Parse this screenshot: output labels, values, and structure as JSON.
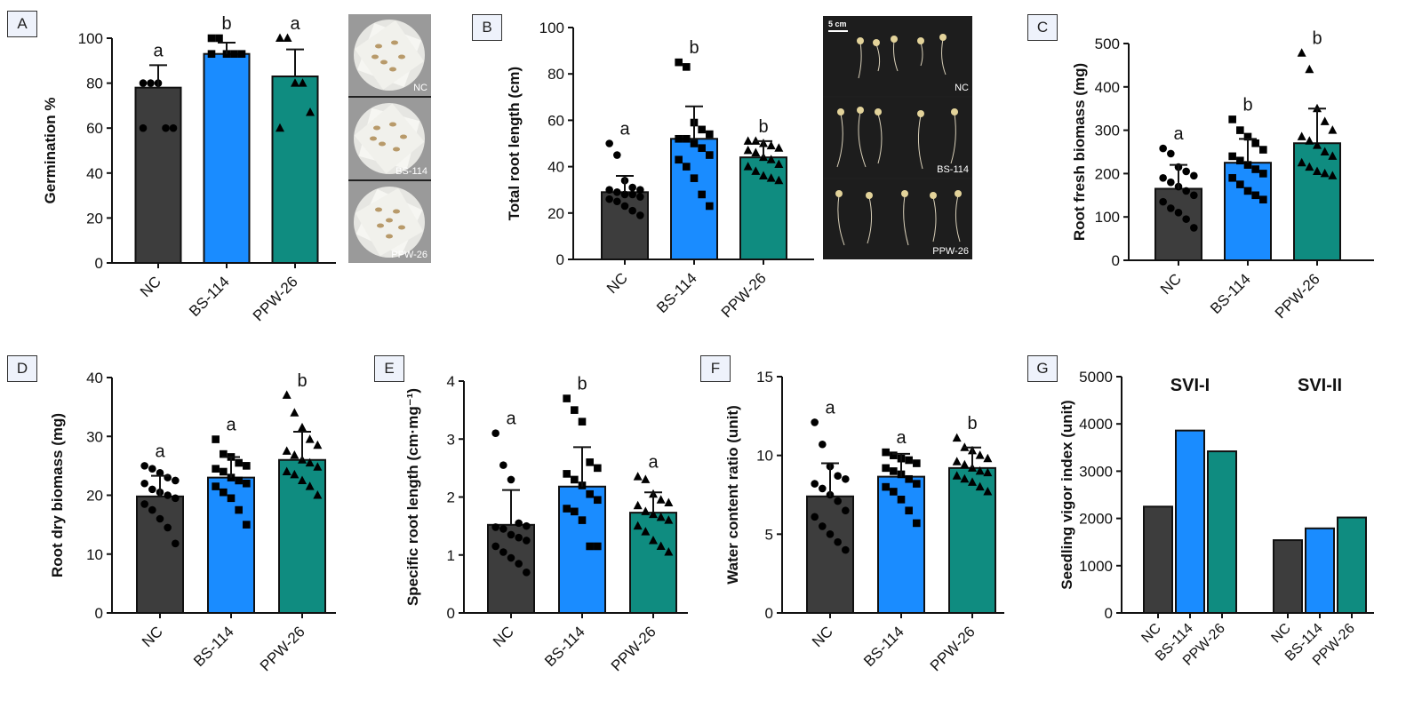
{
  "colors": {
    "NC": "#3d3d3d",
    "BS-114": "#1a8cff",
    "PPW-26": "#0f8c80",
    "axis": "#111111",
    "photo_bg_dark": "#1f1f1f",
    "photo_bg_light": "#8c8c8c"
  },
  "panel_labels": {
    "A": "A",
    "B": "B",
    "C": "C",
    "D": "D",
    "E": "E",
    "F": "F",
    "G": "G"
  },
  "photos": {
    "A": {
      "cells": [
        "NC",
        "BS-114",
        "PPW-26"
      ]
    },
    "B": {
      "scale": "5 cm",
      "cells": [
        "NC",
        "BS-114",
        "PPW-26"
      ]
    }
  },
  "chart_data": [
    {
      "id": "A",
      "type": "bar",
      "ylabel": "Germination %",
      "ylim": [
        0,
        100
      ],
      "yticks": [
        0,
        20,
        40,
        60,
        80,
        100
      ],
      "categories": [
        "NC",
        "BS-114",
        "PPW-26"
      ],
      "values": [
        78,
        93,
        83
      ],
      "errors": [
        10,
        5,
        12
      ],
      "letters": [
        "a",
        "b",
        "a"
      ],
      "marker": [
        "circle",
        "square",
        "triangle"
      ],
      "points": [
        [
          80,
          80,
          80,
          60,
          60,
          60
        ],
        [
          100,
          100,
          93,
          93,
          93,
          93
        ],
        [
          100,
          100,
          80,
          80,
          67,
          60
        ]
      ]
    },
    {
      "id": "B",
      "type": "bar",
      "ylabel": "Total root length (cm)",
      "ylim": [
        0,
        100
      ],
      "yticks": [
        0,
        20,
        40,
        60,
        80,
        100
      ],
      "categories": [
        "NC",
        "BS-114",
        "PPW-26"
      ],
      "values": [
        29,
        52,
        44
      ],
      "errors": [
        7,
        14,
        7
      ],
      "letters": [
        "a",
        "b",
        "b"
      ],
      "marker": [
        "circle",
        "square",
        "triangle"
      ],
      "points": [
        [
          50,
          45,
          34,
          31,
          30,
          30,
          29,
          28,
          28,
          27,
          26,
          25,
          23,
          21,
          19
        ],
        [
          85,
          83,
          59,
          56,
          54,
          52,
          52,
          50,
          48,
          45,
          43,
          40,
          35,
          28,
          23
        ],
        [
          51,
          51,
          50,
          49,
          48,
          47,
          46,
          44,
          43,
          41,
          40,
          38,
          36,
          35,
          34
        ]
      ]
    },
    {
      "id": "C",
      "type": "bar",
      "ylabel": "Root fresh biomass (mg)",
      "ylim": [
        0,
        500
      ],
      "yticks": [
        0,
        100,
        200,
        300,
        400,
        500
      ],
      "categories": [
        "NC",
        "BS-114",
        "PPW-26"
      ],
      "values": [
        165,
        225,
        270
      ],
      "errors": [
        55,
        55,
        80
      ],
      "letters": [
        "a",
        "b",
        "b"
      ],
      "marker": [
        "circle",
        "square",
        "triangle"
      ],
      "points": [
        [
          258,
          246,
          215,
          205,
          195,
          190,
          180,
          170,
          160,
          150,
          135,
          120,
          110,
          95,
          75
        ],
        [
          325,
          300,
          285,
          270,
          255,
          240,
          230,
          220,
          210,
          200,
          190,
          175,
          160,
          150,
          140
        ],
        [
          478,
          440,
          350,
          320,
          300,
          285,
          275,
          265,
          250,
          240,
          225,
          215,
          205,
          200,
          195
        ]
      ]
    },
    {
      "id": "D",
      "type": "bar",
      "ylabel": "Root dry biomass (mg)",
      "ylim": [
        0,
        40
      ],
      "yticks": [
        0,
        10,
        20,
        30,
        40
      ],
      "categories": [
        "NC",
        "BS-114",
        "PPW-26"
      ],
      "values": [
        19.8,
        23,
        26
      ],
      "errors": [
        3.5,
        3.5,
        4.8
      ],
      "letters": [
        "a",
        "a",
        "b"
      ],
      "marker": [
        "circle",
        "square",
        "triangle"
      ],
      "points": [
        [
          25,
          24.5,
          23.8,
          23,
          22.5,
          22,
          21,
          20.5,
          20,
          19.5,
          18.5,
          17.5,
          16,
          14.5,
          11.8
        ],
        [
          29.5,
          27,
          26.5,
          25.5,
          25,
          24.5,
          24,
          23,
          22.5,
          22,
          21.5,
          20.5,
          19.5,
          17.5,
          15
        ],
        [
          37,
          34,
          31.5,
          29.5,
          28.5,
          27.5,
          26.8,
          26,
          25.5,
          24.8,
          24,
          23.5,
          22.5,
          21.5,
          20
        ]
      ]
    },
    {
      "id": "E",
      "type": "bar",
      "ylabel": "Specific root length (cm·mg⁻¹)",
      "ylim": [
        0,
        4
      ],
      "yticks": [
        0,
        1,
        2,
        3,
        4
      ],
      "categories": [
        "NC",
        "BS-114",
        "PPW-26"
      ],
      "values": [
        1.52,
        2.18,
        1.73
      ],
      "errors": [
        0.6,
        0.68,
        0.35
      ],
      "letters": [
        "a",
        "b",
        "a"
      ],
      "marker": [
        "circle",
        "square",
        "triangle"
      ],
      "points": [
        [
          3.1,
          2.55,
          2.3,
          1.55,
          1.5,
          1.48,
          1.45,
          1.35,
          1.3,
          1.25,
          1.15,
          1.05,
          0.95,
          0.85,
          0.7
        ],
        [
          3.7,
          3.5,
          3.3,
          2.6,
          2.5,
          2.4,
          2.3,
          2.2,
          2.05,
          1.95,
          1.8,
          1.75,
          1.6,
          1.15,
          1.15
        ],
        [
          2.35,
          2.3,
          2.05,
          1.95,
          1.9,
          1.85,
          1.75,
          1.7,
          1.65,
          1.6,
          1.5,
          1.4,
          1.25,
          1.15,
          1.05
        ]
      ]
    },
    {
      "id": "F",
      "type": "bar",
      "ylabel": "Water content ratio (unit)",
      "ylim": [
        0,
        15
      ],
      "yticks": [
        0,
        5,
        10,
        15
      ],
      "categories": [
        "NC",
        "BS-114",
        "PPW-26"
      ],
      "values": [
        7.4,
        8.65,
        9.2
      ],
      "errors": [
        2.1,
        1.45,
        1.3
      ],
      "letters": [
        "a",
        "a",
        "b"
      ],
      "marker": [
        "circle",
        "square",
        "triangle"
      ],
      "points": [
        [
          12.1,
          10.7,
          9.3,
          8.7,
          8.5,
          8.2,
          7.9,
          7.5,
          7.1,
          6.5,
          6.1,
          5.5,
          5.0,
          4.5,
          4.0
        ],
        [
          10.2,
          10.0,
          9.8,
          9.7,
          9.5,
          9.2,
          9.0,
          8.8,
          8.5,
          8.2,
          8.0,
          7.7,
          7.2,
          6.5,
          5.7
        ],
        [
          11.1,
          10.5,
          10.3,
          10.0,
          9.8,
          9.6,
          9.4,
          9.2,
          9.0,
          8.9,
          8.7,
          8.5,
          8.3,
          8.0,
          7.7
        ]
      ]
    },
    {
      "id": "G",
      "type": "bar",
      "ylabel": "Seedling vigor index (unit)",
      "ylim": [
        0,
        5000
      ],
      "yticks": [
        0,
        1000,
        2000,
        3000,
        4000,
        5000
      ],
      "groups": [
        {
          "name": "SVI-I",
          "categories": [
            "NC",
            "BS-114",
            "PPW-26"
          ],
          "values": [
            2250,
            3860,
            3420
          ]
        },
        {
          "name": "SVI-II",
          "categories": [
            "NC",
            "BS-114",
            "PPW-26"
          ],
          "values": [
            1540,
            1790,
            2020
          ]
        }
      ]
    }
  ]
}
